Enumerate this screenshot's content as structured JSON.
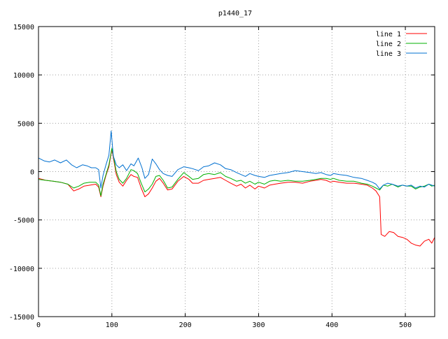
{
  "chart_data": {
    "type": "line",
    "title": "p1440_17",
    "xlabel": "",
    "ylabel": "",
    "xlim": [
      0,
      540
    ],
    "ylim": [
      -15000,
      15000
    ],
    "x_ticks": [
      0,
      100,
      200,
      300,
      400,
      500
    ],
    "y_ticks": [
      -15000,
      -10000,
      -5000,
      0,
      5000,
      10000,
      15000
    ],
    "grid": true,
    "legend_position": "top-right",
    "series": [
      {
        "name": "line 1",
        "color": "#ff0000",
        "points": [
          [
            0,
            -700
          ],
          [
            10,
            -900
          ],
          [
            20,
            -1000
          ],
          [
            30,
            -1100
          ],
          [
            40,
            -1300
          ],
          [
            48,
            -2000
          ],
          [
            55,
            -1800
          ],
          [
            62,
            -1500
          ],
          [
            70,
            -1400
          ],
          [
            78,
            -1300
          ],
          [
            82,
            -1600
          ],
          [
            85,
            -2600
          ],
          [
            88,
            -1500
          ],
          [
            92,
            -400
          ],
          [
            96,
            500
          ],
          [
            100,
            2300
          ],
          [
            103,
            1000
          ],
          [
            106,
            -300
          ],
          [
            110,
            -1100
          ],
          [
            115,
            -1500
          ],
          [
            120,
            -900
          ],
          [
            126,
            -300
          ],
          [
            130,
            -500
          ],
          [
            135,
            -600
          ],
          [
            140,
            -1700
          ],
          [
            145,
            -2600
          ],
          [
            150,
            -2300
          ],
          [
            155,
            -1700
          ],
          [
            160,
            -1000
          ],
          [
            165,
            -700
          ],
          [
            170,
            -1200
          ],
          [
            176,
            -1900
          ],
          [
            182,
            -1800
          ],
          [
            190,
            -1000
          ],
          [
            198,
            -500
          ],
          [
            205,
            -800
          ],
          [
            210,
            -1200
          ],
          [
            218,
            -1200
          ],
          [
            225,
            -900
          ],
          [
            232,
            -800
          ],
          [
            240,
            -700
          ],
          [
            248,
            -600
          ],
          [
            255,
            -900
          ],
          [
            262,
            -1200
          ],
          [
            270,
            -1500
          ],
          [
            276,
            -1300
          ],
          [
            282,
            -1700
          ],
          [
            288,
            -1400
          ],
          [
            295,
            -1800
          ],
          [
            300,
            -1500
          ],
          [
            308,
            -1700
          ],
          [
            315,
            -1400
          ],
          [
            322,
            -1300
          ],
          [
            330,
            -1200
          ],
          [
            340,
            -1100
          ],
          [
            350,
            -1100
          ],
          [
            360,
            -1200
          ],
          [
            370,
            -1000
          ],
          [
            378,
            -900
          ],
          [
            385,
            -800
          ],
          [
            392,
            -900
          ],
          [
            398,
            -1100
          ],
          [
            402,
            -1000
          ],
          [
            410,
            -1100
          ],
          [
            420,
            -1200
          ],
          [
            430,
            -1200
          ],
          [
            440,
            -1300
          ],
          [
            448,
            -1400
          ],
          [
            455,
            -1700
          ],
          [
            460,
            -2000
          ],
          [
            465,
            -2600
          ],
          [
            467,
            -6500
          ],
          [
            472,
            -6700
          ],
          [
            478,
            -6200
          ],
          [
            484,
            -6300
          ],
          [
            490,
            -6700
          ],
          [
            496,
            -6800
          ],
          [
            502,
            -7000
          ],
          [
            508,
            -7400
          ],
          [
            514,
            -7600
          ],
          [
            520,
            -7700
          ],
          [
            526,
            -7200
          ],
          [
            532,
            -7000
          ],
          [
            536,
            -7400
          ],
          [
            540,
            -6800
          ]
        ]
      },
      {
        "name": "line 2",
        "color": "#00b000",
        "points": [
          [
            0,
            -800
          ],
          [
            10,
            -900
          ],
          [
            20,
            -1000
          ],
          [
            30,
            -1100
          ],
          [
            40,
            -1300
          ],
          [
            48,
            -1700
          ],
          [
            55,
            -1500
          ],
          [
            62,
            -1200
          ],
          [
            70,
            -1100
          ],
          [
            78,
            -1100
          ],
          [
            82,
            -1400
          ],
          [
            85,
            -2500
          ],
          [
            88,
            -1300
          ],
          [
            92,
            -300
          ],
          [
            96,
            700
          ],
          [
            100,
            2400
          ],
          [
            103,
            1200
          ],
          [
            106,
            0
          ],
          [
            110,
            -800
          ],
          [
            115,
            -1200
          ],
          [
            120,
            -700
          ],
          [
            126,
            200
          ],
          [
            130,
            100
          ],
          [
            135,
            -200
          ],
          [
            140,
            -1200
          ],
          [
            145,
            -2100
          ],
          [
            150,
            -1800
          ],
          [
            155,
            -1300
          ],
          [
            160,
            -500
          ],
          [
            165,
            -400
          ],
          [
            170,
            -900
          ],
          [
            176,
            -1700
          ],
          [
            182,
            -1600
          ],
          [
            190,
            -800
          ],
          [
            198,
            -100
          ],
          [
            205,
            -500
          ],
          [
            210,
            -800
          ],
          [
            218,
            -700
          ],
          [
            225,
            -300
          ],
          [
            232,
            -200
          ],
          [
            240,
            -300
          ],
          [
            248,
            -100
          ],
          [
            255,
            -500
          ],
          [
            262,
            -700
          ],
          [
            270,
            -1000
          ],
          [
            276,
            -900
          ],
          [
            282,
            -1200
          ],
          [
            288,
            -1000
          ],
          [
            295,
            -1300
          ],
          [
            300,
            -1100
          ],
          [
            308,
            -1300
          ],
          [
            315,
            -1000
          ],
          [
            322,
            -900
          ],
          [
            330,
            -1000
          ],
          [
            340,
            -900
          ],
          [
            350,
            -1000
          ],
          [
            360,
            -1000
          ],
          [
            370,
            -900
          ],
          [
            378,
            -800
          ],
          [
            385,
            -700
          ],
          [
            392,
            -700
          ],
          [
            398,
            -800
          ],
          [
            402,
            -700
          ],
          [
            410,
            -900
          ],
          [
            420,
            -1000
          ],
          [
            430,
            -1000
          ],
          [
            440,
            -1200
          ],
          [
            448,
            -1300
          ],
          [
            455,
            -1500
          ],
          [
            460,
            -1700
          ],
          [
            465,
            -1900
          ],
          [
            470,
            -1400
          ],
          [
            476,
            -1500
          ],
          [
            482,
            -1300
          ],
          [
            490,
            -1600
          ],
          [
            496,
            -1400
          ],
          [
            502,
            -1500
          ],
          [
            508,
            -1500
          ],
          [
            514,
            -1800
          ],
          [
            520,
            -1600
          ],
          [
            526,
            -1500
          ],
          [
            532,
            -1300
          ],
          [
            536,
            -1500
          ],
          [
            540,
            -1400
          ]
        ]
      },
      {
        "name": "line 3",
        "color": "#0070d0",
        "points": [
          [
            0,
            1400
          ],
          [
            8,
            1100
          ],
          [
            15,
            1000
          ],
          [
            22,
            1200
          ],
          [
            30,
            900
          ],
          [
            38,
            1200
          ],
          [
            45,
            700
          ],
          [
            52,
            400
          ],
          [
            60,
            700
          ],
          [
            66,
            600
          ],
          [
            72,
            400
          ],
          [
            78,
            400
          ],
          [
            82,
            200
          ],
          [
            85,
            -1700
          ],
          [
            88,
            -400
          ],
          [
            92,
            700
          ],
          [
            96,
            1700
          ],
          [
            99,
            4200
          ],
          [
            102,
            1600
          ],
          [
            106,
            700
          ],
          [
            110,
            400
          ],
          [
            115,
            700
          ],
          [
            120,
            100
          ],
          [
            126,
            800
          ],
          [
            130,
            600
          ],
          [
            136,
            1400
          ],
          [
            141,
            400
          ],
          [
            145,
            -700
          ],
          [
            150,
            -300
          ],
          [
            155,
            1300
          ],
          [
            160,
            800
          ],
          [
            165,
            200
          ],
          [
            170,
            -200
          ],
          [
            176,
            -400
          ],
          [
            182,
            -500
          ],
          [
            190,
            200
          ],
          [
            198,
            500
          ],
          [
            205,
            400
          ],
          [
            210,
            300
          ],
          [
            218,
            100
          ],
          [
            225,
            500
          ],
          [
            232,
            600
          ],
          [
            240,
            900
          ],
          [
            248,
            700
          ],
          [
            255,
            300
          ],
          [
            262,
            200
          ],
          [
            270,
            -100
          ],
          [
            276,
            -300
          ],
          [
            282,
            -500
          ],
          [
            288,
            -200
          ],
          [
            295,
            -400
          ],
          [
            300,
            -500
          ],
          [
            308,
            -600
          ],
          [
            315,
            -400
          ],
          [
            322,
            -300
          ],
          [
            330,
            -200
          ],
          [
            340,
            -100
          ],
          [
            350,
            100
          ],
          [
            360,
            0
          ],
          [
            370,
            -100
          ],
          [
            378,
            -200
          ],
          [
            385,
            -100
          ],
          [
            392,
            -300
          ],
          [
            398,
            -400
          ],
          [
            402,
            -200
          ],
          [
            410,
            -300
          ],
          [
            420,
            -400
          ],
          [
            430,
            -600
          ],
          [
            440,
            -700
          ],
          [
            448,
            -900
          ],
          [
            455,
            -1100
          ],
          [
            460,
            -1300
          ],
          [
            465,
            -1800
          ],
          [
            470,
            -1400
          ],
          [
            476,
            -1200
          ],
          [
            482,
            -1300
          ],
          [
            490,
            -1500
          ],
          [
            496,
            -1400
          ],
          [
            502,
            -1500
          ],
          [
            508,
            -1400
          ],
          [
            514,
            -1700
          ],
          [
            520,
            -1500
          ],
          [
            526,
            -1600
          ],
          [
            532,
            -1300
          ],
          [
            536,
            -1400
          ],
          [
            540,
            -1500
          ]
        ]
      }
    ]
  }
}
